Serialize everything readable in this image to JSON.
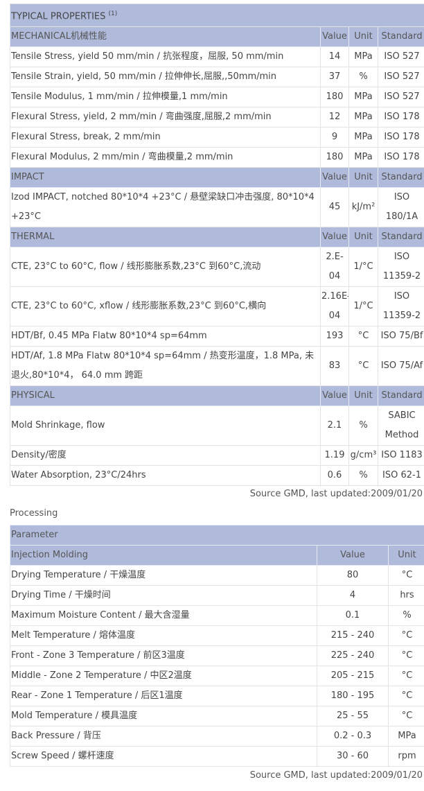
{
  "properties": {
    "title": "TYPICAL PROPERTIES",
    "title_sup": "(1)",
    "sections": [
      {
        "name": "MECHANICAL机械性能",
        "headers": [
          "Value",
          "Unit",
          "Standard"
        ],
        "rows": [
          [
            "Tensile Stress, yield 50 mm/min / 抗张程度，屈服, 50 mm/min",
            "14",
            "MPa",
            "ISO 527"
          ],
          [
            "Tensile Strain, yield, 50 mm/min / 拉伸伸长,屈服,,50mm/min",
            "37",
            "%",
            "ISO 527"
          ],
          [
            "Tensile Modulus, 1 mm/min / 拉伸模量,1 mm/min",
            "180",
            "MPa",
            "ISO 527"
          ],
          [
            "Flexural Stress, yield, 2 mm/min / 弯曲强度,屈服,2 mm/min",
            "12",
            "MPa",
            "ISO 178"
          ],
          [
            "Flexural Stress, break, 2 mm/min",
            "9",
            "MPa",
            "ISO 178"
          ],
          [
            "Flexural Modulus, 2 mm/min / 弯曲模量,2 mm/min",
            "180",
            "MPa",
            "ISO 178"
          ]
        ]
      },
      {
        "name": "IMPACT",
        "headers": [
          "Value",
          "Unit",
          "Standard"
        ],
        "rows": [
          [
            "Izod IMPACT, notched 80*10*4 +23°C / 悬壁梁缺口冲击强度, 80*10*4 +23°C",
            "45",
            "kJ/m²",
            "ISO 180/1A"
          ]
        ]
      },
      {
        "name": "THERMAL",
        "headers": [
          "Value",
          "Unit",
          "Standard"
        ],
        "rows": [
          [
            "CTE, 23°C to 60°C, flow / 线形膨胀系数,23°C 到60°C,流动",
            "2.E-04",
            "1/°C",
            "ISO 11359-2"
          ],
          [
            "CTE, 23°C to 60°C, xflow / 线形膨胀系数,23°C 到60°C,横向",
            "2.16E-04",
            "1/°C",
            "ISO 11359-2"
          ],
          [
            "HDT/Bf, 0.45 MPa Flatw 80*10*4 sp=64mm",
            "193",
            "°C",
            "ISO 75/Bf"
          ],
          [
            "HDT/Af, 1.8 MPa Flatw 80*10*4 sp=64mm / 热变形温度，1.8 MPa, 未退火,80*10*4，  64.0 mm 跨距",
            "83",
            "°C",
            "ISO 75/Af"
          ]
        ]
      },
      {
        "name": "PHYSICAL",
        "headers": [
          "Value",
          "Unit",
          "Standard"
        ],
        "rows": [
          [
            "Mold Shrinkage, flow",
            "2.1",
            "%",
            "SABIC Method"
          ],
          [
            "Density/密度",
            "1.19",
            "g/cm³",
            "ISO 1183"
          ],
          [
            "Water Absorption, 23°C/24hrs",
            "0.6",
            "%",
            "ISO 62-1"
          ]
        ]
      }
    ],
    "source": "Source GMD, last updated:2009/01/20"
  },
  "processing": {
    "label": "Processing",
    "title": "Parameter",
    "section": "Injection Molding",
    "headers": [
      "Value",
      "Unit"
    ],
    "rows": [
      [
        "Drying Temperature / 干燥温度",
        "80",
        "°C"
      ],
      [
        "Drying Time / 干燥时间",
        "4",
        "hrs"
      ],
      [
        "Maximum Moisture Content / 最大含湿量",
        "0.1",
        "%"
      ],
      [
        "Melt Temperature / 熔体温度",
        "215 - 240",
        "°C"
      ],
      [
        "Front - Zone 3 Temperature / 前区3温度",
        "225 - 240",
        "°C"
      ],
      [
        "Middle - Zone 2 Temperature / 中区2温度",
        "205 - 215",
        "°C"
      ],
      [
        "Rear - Zone 1 Temperature / 后区1温度",
        "180 - 195",
        "°C"
      ],
      [
        "Mold Temperature / 模具温度",
        "25 - 55",
        "°C"
      ],
      [
        "Back Pressure / 背压",
        "0.2 - 0.3",
        "MPa"
      ],
      [
        "Screw Speed / 螺杆速度",
        "30 - 60",
        "rpm"
      ]
    ],
    "source": "Source GMD, last updated:2009/01/20"
  },
  "colors": {
    "header_bg": "#b0bbdc"
  }
}
